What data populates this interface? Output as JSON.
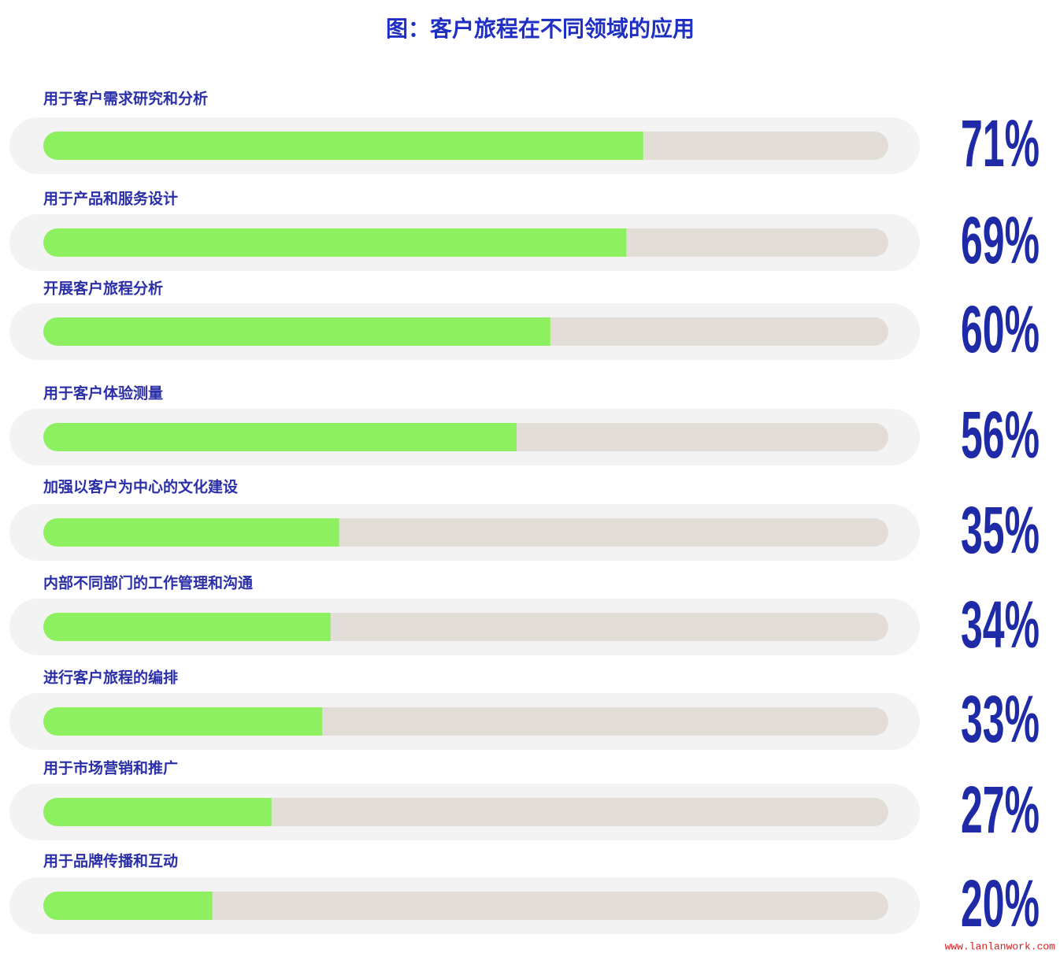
{
  "chart_data": {
    "type": "progress-bar",
    "title": "图：客户旅程在不同领域的应用",
    "categories": [
      "用于客户需求研究和分析",
      "用于产品和服务设计",
      "开展客户旅程分析",
      "用于客户体验测量",
      "加强以客户为中心的文化建设",
      "内部不同部门的工作管理和沟通",
      "进行客户旅程的编排",
      "用于市场营销和推广",
      "用于品牌传播和互动"
    ],
    "values": [
      71,
      69,
      60,
      56,
      35,
      34,
      33,
      27,
      20
    ],
    "value_labels": [
      "71%",
      "69%",
      "60%",
      "56%",
      "35%",
      "34%",
      "33%",
      "27%",
      "20%"
    ],
    "xlim": [
      0,
      100
    ],
    "color": "#8cf060",
    "track_color": "#e2ddd6",
    "watermark": "www.lanlanwork.com"
  }
}
